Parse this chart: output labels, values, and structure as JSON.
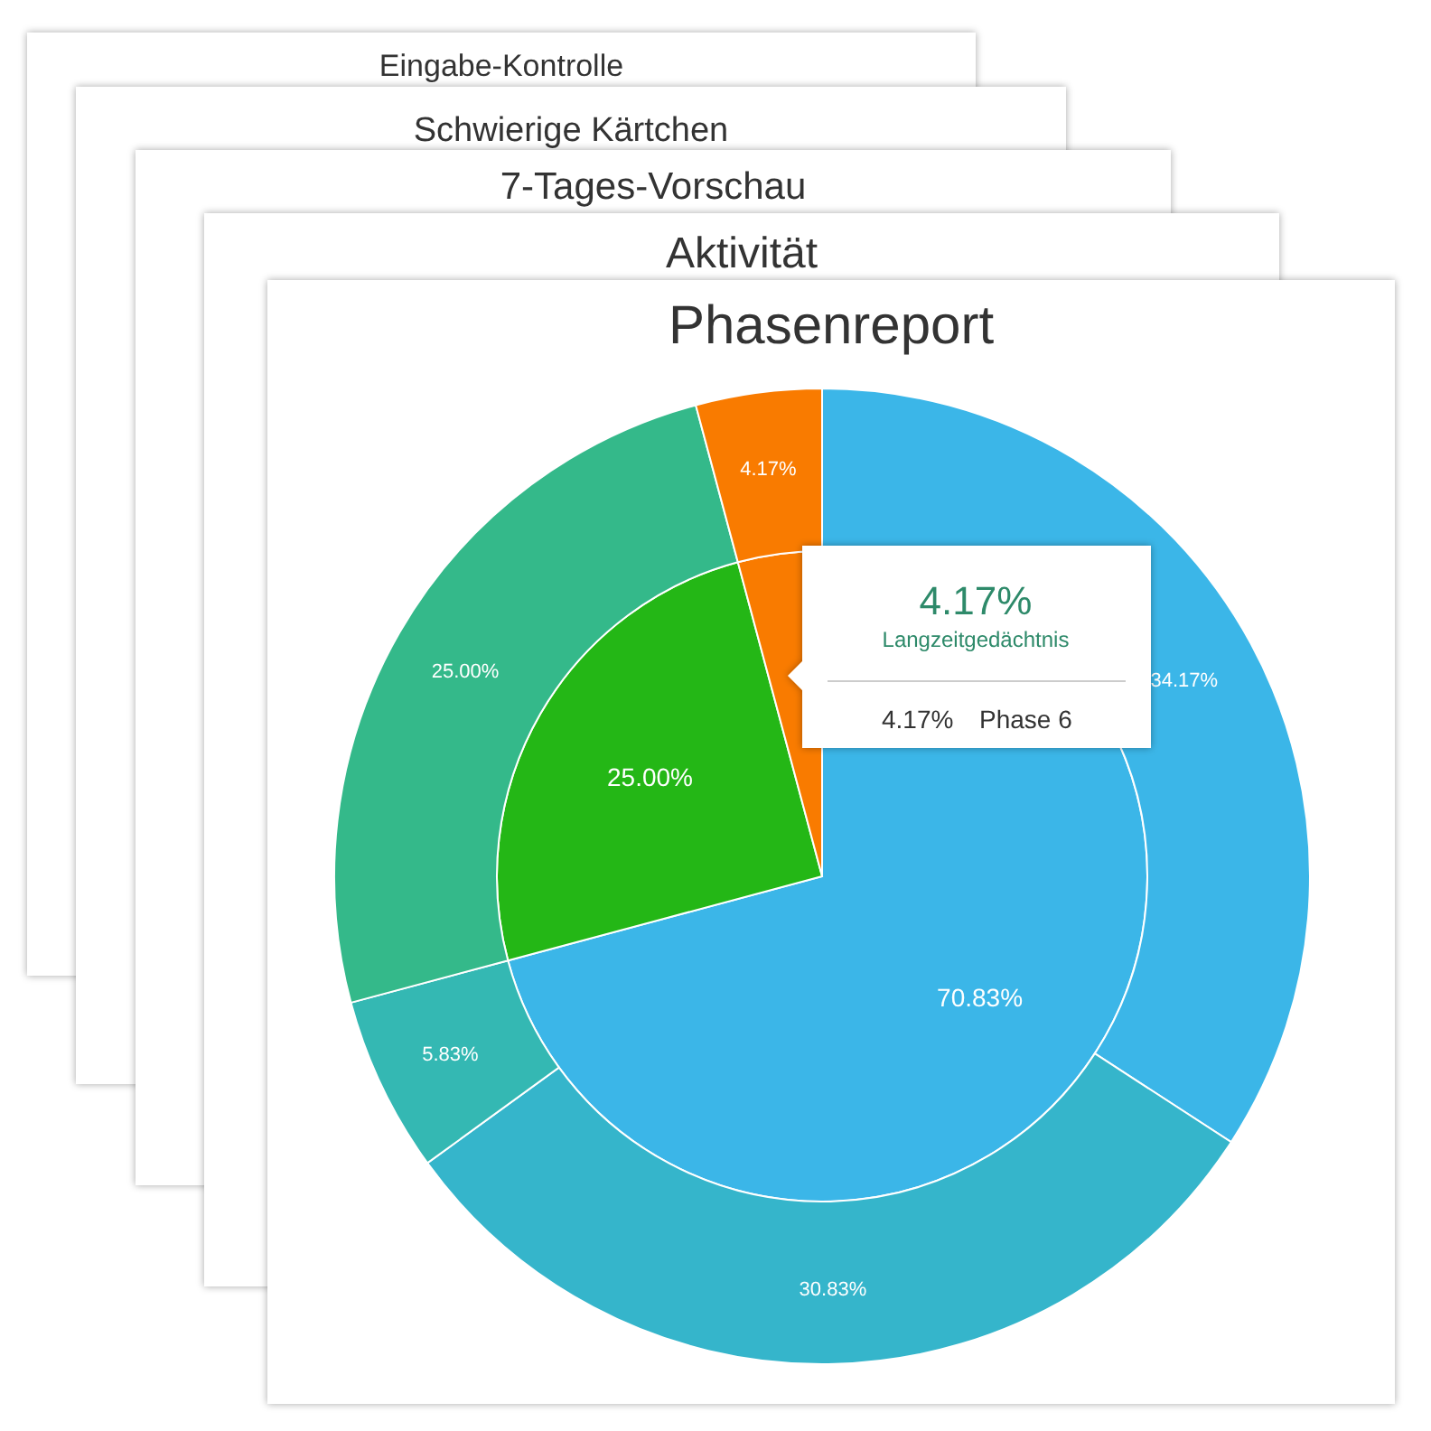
{
  "chart_data": [
    {
      "type": "other",
      "title": "Eingabe-Kontrolle"
    },
    {
      "type": "other",
      "title": "Schwierige Kärtchen"
    },
    {
      "type": "other",
      "title": "7-Tages-Vorschau"
    },
    {
      "type": "other",
      "title": "Aktivität"
    },
    {
      "type": "pie",
      "title": "Phasenreport",
      "series": [
        {
          "type": "pie",
          "values": [
            70.83,
            25.0,
            4.17
          ],
          "value_labels": [
            "70.83%",
            "25.00%",
            null
          ],
          "colors": [
            "#3bb6e8",
            "#24b716",
            "#f97b00"
          ]
        },
        {
          "type": "donut",
          "values": [
            34.17,
            30.83,
            5.83,
            25.0,
            4.17
          ],
          "value_labels": [
            "34.17%",
            "30.83%",
            "5.83%",
            "25.00%",
            "4.17%"
          ],
          "colors": [
            "#3bb6e8",
            "#35b5cb",
            "#34b8b3",
            "#34b98a",
            "#f97b00"
          ]
        }
      ],
      "annotations": [
        "4.17%",
        "Langzeitgedächtnis",
        "4.17%",
        "Phase 6"
      ]
    }
  ]
}
